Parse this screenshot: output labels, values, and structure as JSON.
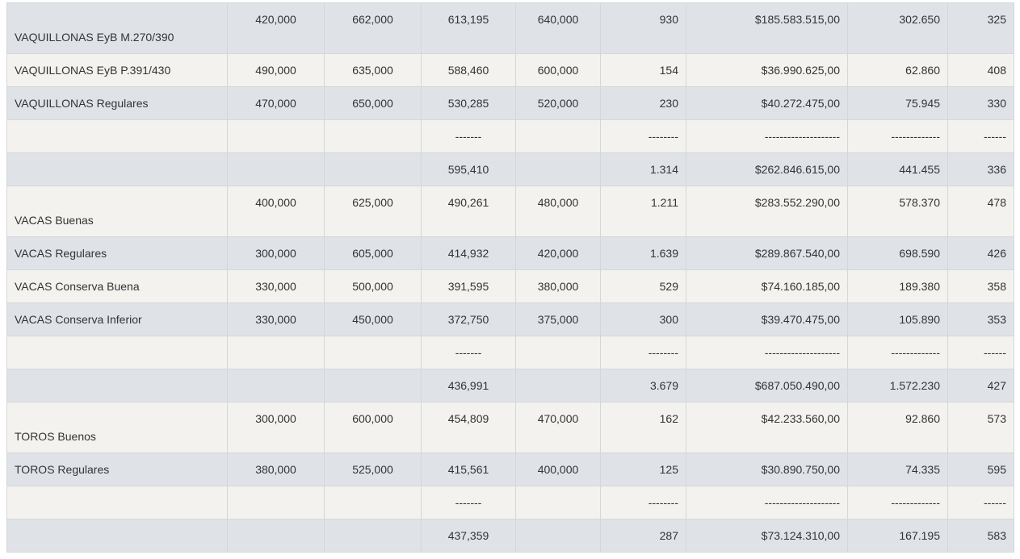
{
  "table": {
    "rows": [
      [
        "VAQUILLONAS EyB M.270/390",
        "420,000",
        "662,000",
        "613,195",
        "640,000",
        "930",
        "$185.583.515,00",
        "302.650",
        "325"
      ],
      [
        "VAQUILLONAS EyB P.391/430",
        "490,000",
        "635,000",
        "588,460",
        "600,000",
        "154",
        "$36.990.625,00",
        "62.860",
        "408"
      ],
      [
        "VAQUILLONAS Regulares",
        "470,000",
        "650,000",
        "530,285",
        "520,000",
        "230",
        "$40.272.475,00",
        "75.945",
        "330"
      ],
      [
        null,
        null,
        null,
        "-------",
        null,
        "--------",
        "--------------------",
        "-------------",
        "------"
      ],
      [
        null,
        null,
        null,
        "595,410",
        null,
        "1.314",
        "$262.846.615,00",
        "441.455",
        "336"
      ],
      [
        "VACAS Buenas",
        "400,000",
        "625,000",
        "490,261",
        "480,000",
        "1.211",
        "$283.552.290,00",
        "578.370",
        "478"
      ],
      [
        "VACAS Regulares",
        "300,000",
        "605,000",
        "414,932",
        "420,000",
        "1.639",
        "$289.867.540,00",
        "698.590",
        "426"
      ],
      [
        "VACAS Conserva Buena",
        "330,000",
        "500,000",
        "391,595",
        "380,000",
        "529",
        "$74.160.185,00",
        "189.380",
        "358"
      ],
      [
        "VACAS Conserva Inferior",
        "330,000",
        "450,000",
        "372,750",
        "375,000",
        "300",
        "$39.470.475,00",
        "105.890",
        "353"
      ],
      [
        null,
        null,
        null,
        "-------",
        null,
        "--------",
        "--------------------",
        "-------------",
        "------"
      ],
      [
        null,
        null,
        null,
        "436,991",
        null,
        "3.679",
        "$687.050.490,00",
        "1.572.230",
        "427"
      ],
      [
        "TOROS Buenos",
        "300,000",
        "600,000",
        "454,809",
        "470,000",
        "162",
        "$42.233.560,00",
        "92.860",
        "573"
      ],
      [
        "TOROS Regulares",
        "380,000",
        "525,000",
        "415,561",
        "400,000",
        "125",
        "$30.890.750,00",
        "74.335",
        "595"
      ],
      [
        null,
        null,
        null,
        "-------",
        null,
        "--------",
        "--------------------",
        "-------------",
        "------"
      ],
      [
        null,
        null,
        null,
        "437,359",
        null,
        "287",
        "$73.124.310,00",
        "167.195",
        "583"
      ]
    ]
  }
}
